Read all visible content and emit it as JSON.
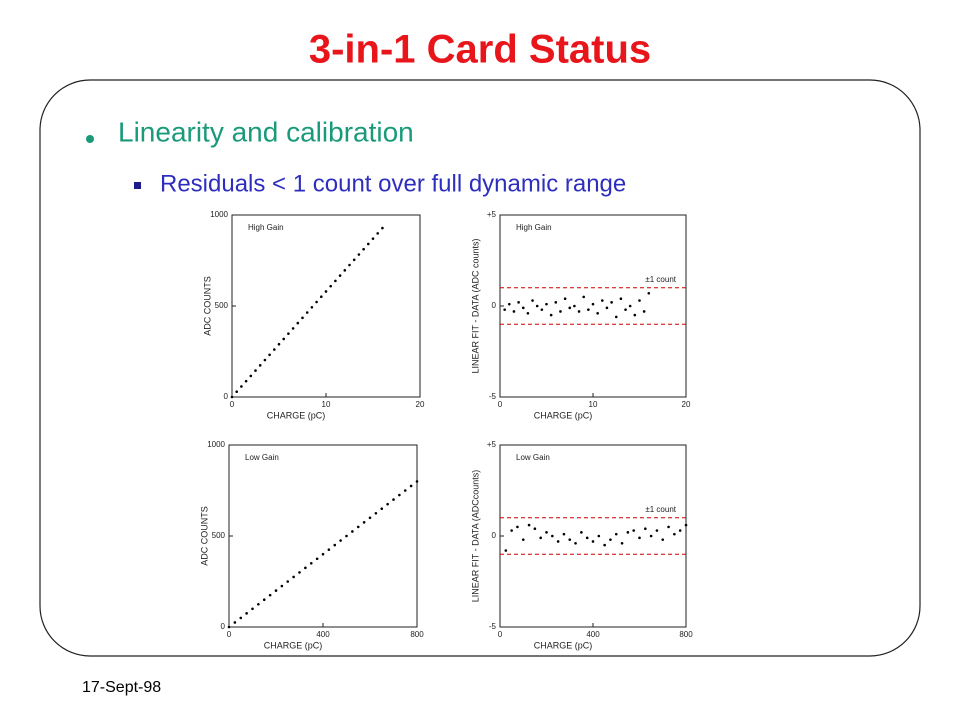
{
  "slide": {
    "title": "3-in-1 Card Status",
    "bullet": "Linearity and calibration",
    "sub_bullet": "Residuals < 1 count over full dynamic range",
    "footer": "17-Sept-98"
  },
  "chart_data": [
    {
      "type": "scatter",
      "annotation": "High Gain",
      "x_label": "CHARGE (pC)",
      "y_label": "ADC COUNTS",
      "color": "#000000",
      "xlim": [
        0,
        20
      ],
      "ylim": [
        0,
        1000
      ],
      "xticks": [
        0,
        10,
        20
      ],
      "yticks": [
        0,
        500,
        1000
      ],
      "x": [
        0,
        0.5,
        1,
        1.5,
        2,
        2.5,
        3,
        3.5,
        4,
        4.5,
        5,
        5.5,
        6,
        6.5,
        7,
        7.5,
        8,
        8.5,
        9,
        9.5,
        10,
        10.5,
        11,
        11.5,
        12,
        12.5,
        13,
        13.5,
        14,
        14.5,
        15,
        15.5,
        16
      ],
      "values": [
        0,
        29,
        58,
        87,
        116,
        145,
        174,
        203,
        232,
        261,
        290,
        319,
        348,
        377,
        406,
        435,
        464,
        493,
        522,
        551,
        580,
        609,
        638,
        667,
        696,
        725,
        754,
        783,
        812,
        841,
        870,
        899,
        928
      ]
    },
    {
      "type": "scatter",
      "annotation": "High Gain",
      "x_label": "CHARGE (pC)",
      "y_label": "LINEAR FIT - DATA  (ADC counts)",
      "color": "#000000",
      "xlim": [
        0,
        20
      ],
      "ylim": [
        -5,
        5
      ],
      "xticks": [
        0,
        10,
        20
      ],
      "yticks": [
        {
          "value": 5,
          "label": "+5"
        },
        0,
        -5
      ],
      "ref_lines": [
        1,
        -1
      ],
      "ref_color": "#cc0000",
      "ref_label": "±1 count",
      "x": [
        0.5,
        1,
        1.5,
        2,
        2.5,
        3,
        3.5,
        4,
        4.5,
        5,
        5.5,
        6,
        6.5,
        7,
        7.5,
        8,
        8.5,
        9,
        9.5,
        10,
        10.5,
        11,
        11.5,
        12,
        12.5,
        13,
        13.5,
        14,
        14.5,
        15,
        15.5,
        16
      ],
      "values": [
        -0.2,
        0.1,
        -0.3,
        0.2,
        -0.1,
        -0.4,
        0.3,
        0.0,
        -0.2,
        0.1,
        -0.5,
        0.2,
        -0.3,
        0.4,
        -0.1,
        0.0,
        -0.3,
        0.5,
        -0.2,
        0.1,
        -0.4,
        0.3,
        -0.1,
        0.2,
        -0.6,
        0.4,
        -0.2,
        0.0,
        -0.5,
        0.3,
        -0.3,
        0.7
      ]
    },
    {
      "type": "scatter",
      "annotation": "Low Gain",
      "x_label": "CHARGE (pC)",
      "y_label": "ADC COUNTS",
      "color": "#000000",
      "xlim": [
        0,
        800
      ],
      "ylim": [
        0,
        1000
      ],
      "xticks": [
        0,
        400,
        800
      ],
      "yticks": [
        0,
        500,
        1000
      ],
      "x": [
        0,
        25,
        50,
        75,
        100,
        125,
        150,
        175,
        200,
        225,
        250,
        275,
        300,
        325,
        350,
        375,
        400,
        425,
        450,
        475,
        500,
        525,
        550,
        575,
        600,
        625,
        650,
        675,
        700,
        725,
        750,
        775,
        800
      ],
      "values": [
        0,
        25,
        50,
        75,
        100,
        125,
        150,
        175,
        200,
        225,
        250,
        275,
        300,
        325,
        350,
        375,
        400,
        425,
        450,
        475,
        500,
        525,
        550,
        575,
        600,
        625,
        650,
        675,
        700,
        725,
        750,
        775,
        800
      ]
    },
    {
      "type": "scatter",
      "annotation": "Low Gain",
      "x_label": "CHARGE (pC)",
      "y_label": "LINEAR FIT - DATA  (ADCcounts)",
      "color": "#000000",
      "xlim": [
        0,
        800
      ],
      "ylim": [
        -5,
        5
      ],
      "xticks": [
        0,
        400,
        800
      ],
      "yticks": [
        {
          "value": 5,
          "label": "+5"
        },
        0,
        -5
      ],
      "ref_lines": [
        1,
        -1
      ],
      "ref_color": "#cc0000",
      "ref_label": "±1 count",
      "x": [
        25,
        50,
        75,
        100,
        125,
        150,
        175,
        200,
        225,
        250,
        275,
        300,
        325,
        350,
        375,
        400,
        425,
        450,
        475,
        500,
        525,
        550,
        575,
        600,
        625,
        650,
        675,
        700,
        725,
        750,
        775,
        800
      ],
      "values": [
        -0.8,
        0.3,
        0.5,
        -0.2,
        0.6,
        0.4,
        -0.1,
        0.2,
        0.0,
        -0.3,
        0.1,
        -0.2,
        -0.4,
        0.2,
        -0.1,
        -0.3,
        0.0,
        -0.5,
        -0.2,
        0.1,
        -0.4,
        0.2,
        0.3,
        -0.1,
        0.4,
        0.0,
        0.3,
        -0.2,
        0.5,
        0.1,
        0.3,
        0.6
      ]
    }
  ]
}
